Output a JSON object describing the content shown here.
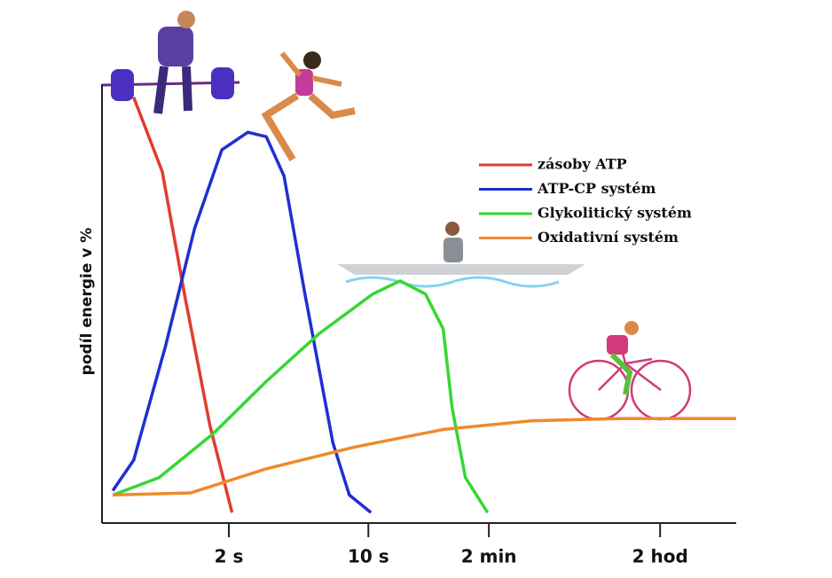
{
  "chart_data": {
    "type": "line",
    "y_label": "podíl energie v %",
    "xlim": [
      0,
      100
    ],
    "ylim": [
      0,
      100
    ],
    "xticks": [
      {
        "value": 20,
        "label": "2 s"
      },
      {
        "value": 42,
        "label": "10 s"
      },
      {
        "value": 61,
        "label": "2 min"
      },
      {
        "value": 88,
        "label": "2 hod"
      }
    ],
    "series": [
      {
        "name": "zásoby ATP",
        "color": "#e03c31",
        "x": [
          5,
          9.5,
          13,
          17,
          20.5
        ],
        "values": [
          97,
          80,
          52,
          22,
          2
        ]
      },
      {
        "name": "ATP-CP systém",
        "color": "#1f2fd0",
        "x": [
          1.7,
          5,
          10,
          14.6,
          18.9,
          23,
          25.9,
          28.7,
          32,
          36.4,
          39,
          42.4
        ],
        "values": [
          7,
          14,
          40,
          67,
          85,
          89,
          88,
          79,
          52,
          18,
          6,
          2
        ]
      },
      {
        "name": "Glykolitický systém",
        "color": "#33d833",
        "x": [
          1.7,
          9,
          17.5,
          25.9,
          34.3,
          42.7,
          47,
          51,
          53.8,
          55.2,
          57.3,
          60.8
        ],
        "values": [
          6,
          10,
          20,
          32,
          43,
          52,
          55,
          52,
          44,
          26,
          10,
          2
        ]
      },
      {
        "name": "Oxidativní systém",
        "color": "#ef8a2c",
        "x": [
          1.7,
          14,
          25.9,
          39.9,
          53.8,
          67.8,
          81.8,
          100
        ],
        "values": [
          6,
          6.5,
          12,
          17,
          21,
          23,
          23.5,
          23.5
        ]
      }
    ]
  }
}
